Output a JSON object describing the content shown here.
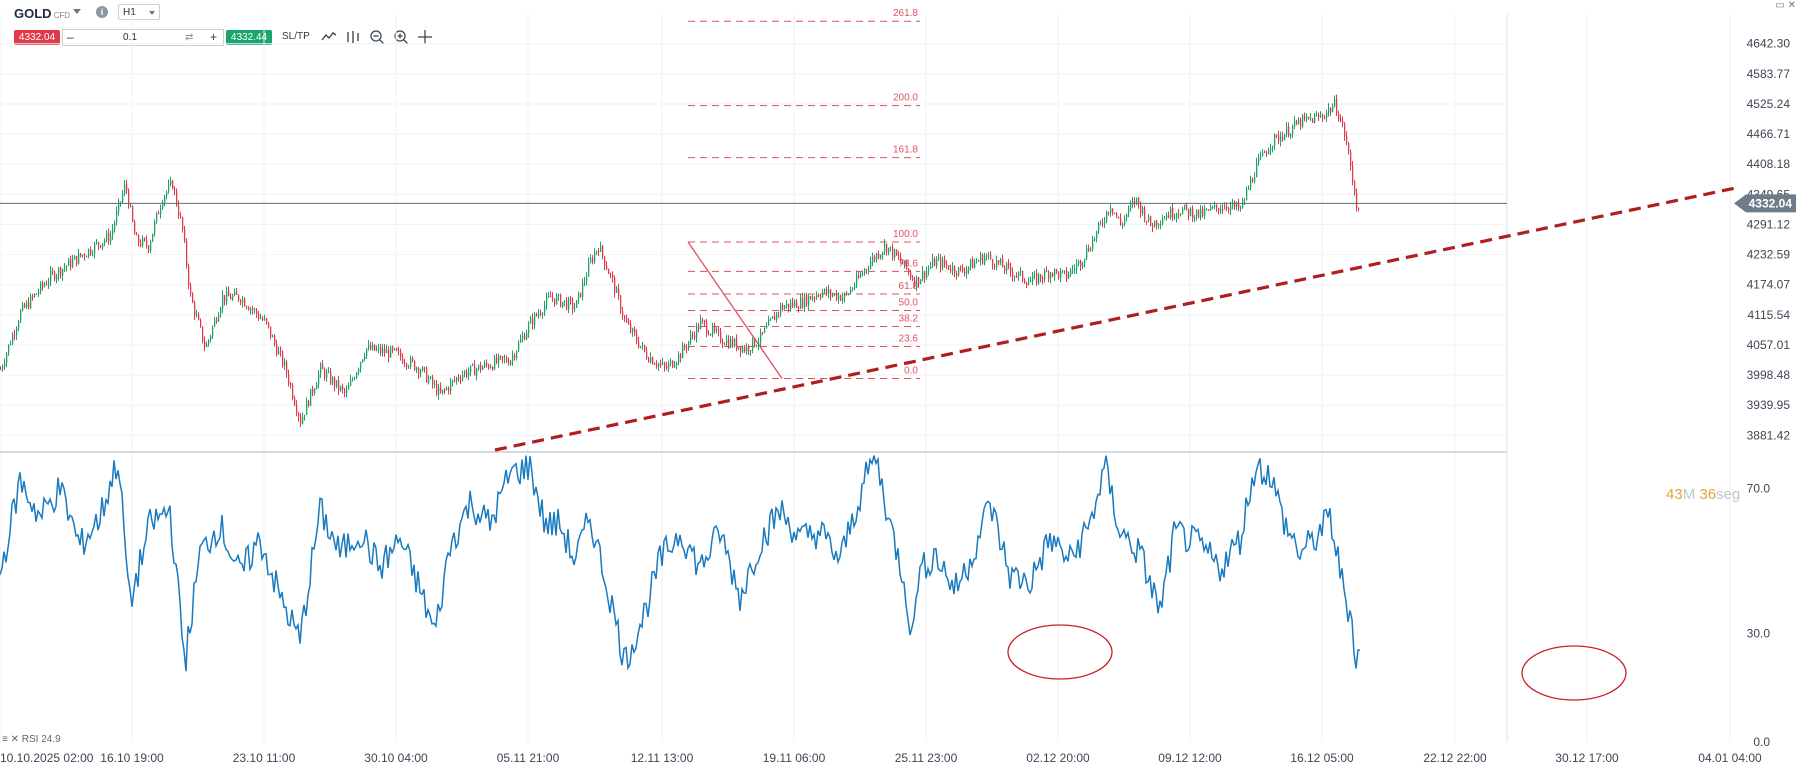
{
  "toolbar": {
    "symbol": "GOLD",
    "symbol_type": "CFD",
    "timeframe": "H1",
    "sell_price": "4332.04",
    "quantity": "0.1",
    "buy_price": "4332.44",
    "sltp_label": "SL/TP",
    "minus_label": "–",
    "plus_label": "+"
  },
  "timer": {
    "minutes": "43",
    "minutes_unit": "M",
    "seconds": "36",
    "seconds_unit": "seg"
  },
  "rsi_legend": "RSI 24.9",
  "colors": {
    "up": "#21a366",
    "down": "#e03a4d",
    "rsi": "#1a7abf",
    "fib": "#e05060",
    "trend": "#b01e1e"
  },
  "chart_data": [
    {
      "type": "candlestick",
      "title": "GOLD H1",
      "ylim": [
        3853,
        4700
      ],
      "y_ticks": [
        "4642.30",
        "4583.77",
        "4525.24",
        "4466.71",
        "4408.18",
        "4349.65",
        "4291.12",
        "4232.59",
        "4174.07",
        "4115.54",
        "4057.01",
        "3998.48",
        "3939.95",
        "3881.42"
      ],
      "x_ticks": [
        "10.10.2025 02:00",
        "16.10 19:00",
        "23.10 11:00",
        "30.10 04:00",
        "05.11 21:00",
        "12.11 13:00",
        "19.11 06:00",
        "25.11 23:00",
        "02.12 20:00",
        "09.12 12:00",
        "16.12 05:00",
        "22.12 22:00",
        "30.12 17:00",
        "04.01 04:00"
      ],
      "current_price": "4332.04",
      "price_path": [
        [
          0,
          4010
        ],
        [
          20,
          4120
        ],
        [
          50,
          4190
        ],
        [
          80,
          4230
        ],
        [
          110,
          4270
        ],
        [
          125,
          4370
        ],
        [
          135,
          4260
        ],
        [
          148,
          4250
        ],
        [
          162,
          4345
        ],
        [
          172,
          4370
        ],
        [
          182,
          4280
        ],
        [
          190,
          4150
        ],
        [
          205,
          4050
        ],
        [
          222,
          4150
        ],
        [
          240,
          4150
        ],
        [
          265,
          4100
        ],
        [
          285,
          4010
        ],
        [
          300,
          3910
        ],
        [
          320,
          4010
        ],
        [
          345,
          3960
        ],
        [
          365,
          4050
        ],
        [
          395,
          4040
        ],
        [
          420,
          4010
        ],
        [
          440,
          3960
        ],
        [
          460,
          4000
        ],
        [
          490,
          4020
        ],
        [
          510,
          4030
        ],
        [
          530,
          4100
        ],
        [
          550,
          4150
        ],
        [
          575,
          4130
        ],
        [
          590,
          4220
        ],
        [
          598,
          4250
        ],
        [
          612,
          4180
        ],
        [
          625,
          4100
        ],
        [
          645,
          4040
        ],
        [
          665,
          4010
        ],
        [
          680,
          4040
        ],
        [
          700,
          4100
        ],
        [
          720,
          4070
        ],
        [
          745,
          4050
        ],
        [
          760,
          4070
        ],
        [
          780,
          4130
        ],
        [
          800,
          4140
        ],
        [
          820,
          4160
        ],
        [
          845,
          4150
        ],
        [
          870,
          4220
        ],
        [
          885,
          4250
        ],
        [
          900,
          4220
        ],
        [
          915,
          4180
        ],
        [
          935,
          4220
        ],
        [
          960,
          4200
        ],
        [
          985,
          4230
        ],
        [
          1010,
          4200
        ],
        [
          1030,
          4180
        ],
        [
          1050,
          4200
        ],
        [
          1065,
          4190
        ],
        [
          1080,
          4220
        ],
        [
          1095,
          4270
        ],
        [
          1110,
          4330
        ],
        [
          1120,
          4290
        ],
        [
          1135,
          4340
        ],
        [
          1150,
          4290
        ],
        [
          1165,
          4310
        ],
        [
          1180,
          4320
        ],
        [
          1200,
          4310
        ],
        [
          1225,
          4330
        ],
        [
          1240,
          4320
        ],
        [
          1255,
          4400
        ],
        [
          1270,
          4450
        ],
        [
          1285,
          4470
        ],
        [
          1300,
          4490
        ],
        [
          1320,
          4500
        ],
        [
          1335,
          4525
        ],
        [
          1345,
          4460
        ],
        [
          1352,
          4380
        ],
        [
          1358,
          4310
        ],
        [
          1358,
          4332
        ]
      ],
      "fibonacci": {
        "high": 4257,
        "low": 3992,
        "levels": [
          {
            "label": "261.8",
            "value": 4686
          },
          {
            "label": "200.0",
            "value": 4522
          },
          {
            "label": "161.8",
            "value": 4421
          },
          {
            "label": "100.0",
            "value": 4257
          },
          {
            "label": "78.6",
            "value": 4200
          },
          {
            "label": "61.8",
            "value": 4156
          },
          {
            "label": "50.0",
            "value": 4124
          },
          {
            "label": "38.2",
            "value": 4093
          },
          {
            "label": "23.6",
            "value": 4054
          },
          {
            "label": "0.0",
            "value": 3992
          }
        ]
      },
      "trendline": {
        "from": [
          "09.11",
          3853
        ],
        "to": [
          "04.01",
          4363
        ]
      }
    },
    {
      "type": "line",
      "title": "RSI",
      "ylim": [
        0,
        80
      ],
      "y_ticks": [
        "70.0",
        "30.0",
        "0.0"
      ],
      "current_value": 24.9,
      "rsi_path": [
        [
          0,
          46
        ],
        [
          20,
          72
        ],
        [
          40,
          62
        ],
        [
          60,
          70
        ],
        [
          80,
          54
        ],
        [
          100,
          62
        ],
        [
          118,
          78
        ],
        [
          130,
          38
        ],
        [
          150,
          60
        ],
        [
          170,
          64
        ],
        [
          185,
          22
        ],
        [
          200,
          52
        ],
        [
          220,
          60
        ],
        [
          240,
          46
        ],
        [
          260,
          56
        ],
        [
          280,
          40
        ],
        [
          300,
          28
        ],
        [
          320,
          64
        ],
        [
          340,
          52
        ],
        [
          360,
          58
        ],
        [
          380,
          48
        ],
        [
          400,
          56
        ],
        [
          420,
          42
        ],
        [
          435,
          30
        ],
        [
          450,
          54
        ],
        [
          470,
          66
        ],
        [
          490,
          60
        ],
        [
          510,
          74
        ],
        [
          530,
          76
        ],
        [
          545,
          60
        ],
        [
          560,
          60
        ],
        [
          575,
          50
        ],
        [
          590,
          62
        ],
        [
          610,
          40
        ],
        [
          625,
          22
        ],
        [
          645,
          36
        ],
        [
          660,
          50
        ],
        [
          680,
          58
        ],
        [
          700,
          48
        ],
        [
          720,
          58
        ],
        [
          740,
          40
        ],
        [
          760,
          55
        ],
        [
          780,
          64
        ],
        [
          800,
          56
        ],
        [
          820,
          58
        ],
        [
          840,
          50
        ],
        [
          860,
          68
        ],
        [
          875,
          80
        ],
        [
          890,
          60
        ],
        [
          905,
          44
        ],
        [
          912,
          28
        ],
        [
          918,
          46
        ],
        [
          935,
          52
        ],
        [
          955,
          42
        ],
        [
          970,
          50
        ],
        [
          990,
          66
        ],
        [
          1010,
          46
        ],
        [
          1030,
          44
        ],
        [
          1050,
          56
        ],
        [
          1070,
          50
        ],
        [
          1090,
          60
        ],
        [
          1105,
          76
        ],
        [
          1120,
          58
        ],
        [
          1140,
          52
        ],
        [
          1160,
          36
        ],
        [
          1175,
          58
        ],
        [
          1200,
          54
        ],
        [
          1220,
          48
        ],
        [
          1240,
          56
        ],
        [
          1255,
          76
        ],
        [
          1270,
          74
        ],
        [
          1285,
          60
        ],
        [
          1300,
          52
        ],
        [
          1315,
          56
        ],
        [
          1330,
          62
        ],
        [
          1345,
          40
        ],
        [
          1352,
          34
        ],
        [
          1356,
          22
        ],
        [
          1360,
          25
        ]
      ],
      "annotations": [
        {
          "shape": "ellipse",
          "at_x_label": "02.12 20:00",
          "around_value": 30
        },
        {
          "shape": "ellipse",
          "at_x_label": "30.12 17:00",
          "around_value": 25
        }
      ]
    }
  ]
}
